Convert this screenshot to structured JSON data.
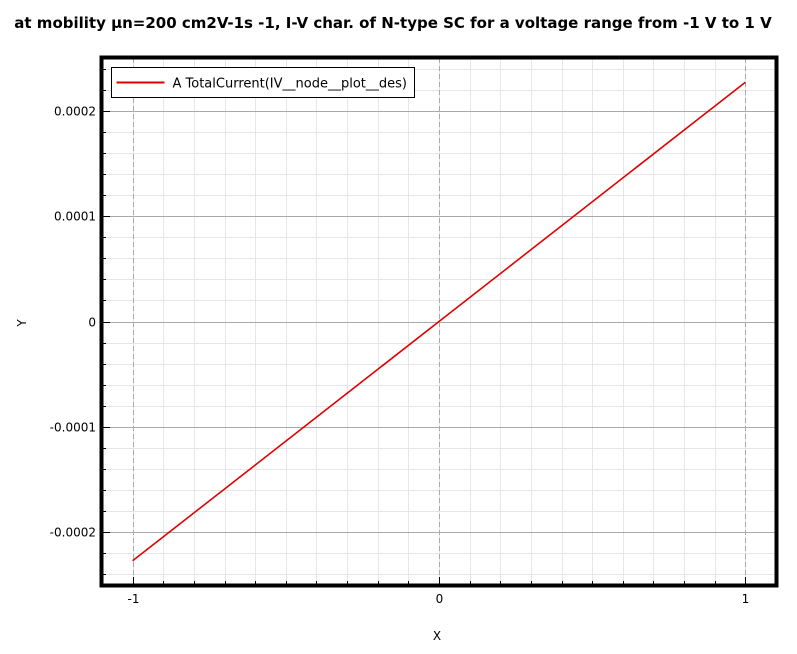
{
  "chart_data": {
    "type": "line",
    "title": "at mobility μn=200 cm2V-1s -1, I-V char. of N-type SC for a voltage range from -1 V to 1 V",
    "xlabel": "X",
    "ylabel": "Y",
    "xlim": [
      -1.1,
      1.1
    ],
    "ylim": [
      -0.00025,
      0.00025
    ],
    "x_ticks": [
      {
        "value": -1,
        "label": "-1"
      },
      {
        "value": 0,
        "label": "0"
      },
      {
        "value": 1,
        "label": "1"
      }
    ],
    "y_ticks": [
      {
        "value": 0.0002,
        "label": "0.0002"
      },
      {
        "value": 0.0001,
        "label": "0.0001"
      },
      {
        "value": 0,
        "label": "0"
      },
      {
        "value": -0.0001,
        "label": "-0.0001"
      },
      {
        "value": -0.0002,
        "label": "-0.0002"
      }
    ],
    "grid": true,
    "legend_position": "top-left",
    "series": [
      {
        "name": "A TotalCurrent(IV__node__plot__des)",
        "color": "#e00000",
        "x": [
          -1,
          0,
          1
        ],
        "y": [
          -0.000227,
          0,
          0.000227
        ]
      }
    ]
  }
}
